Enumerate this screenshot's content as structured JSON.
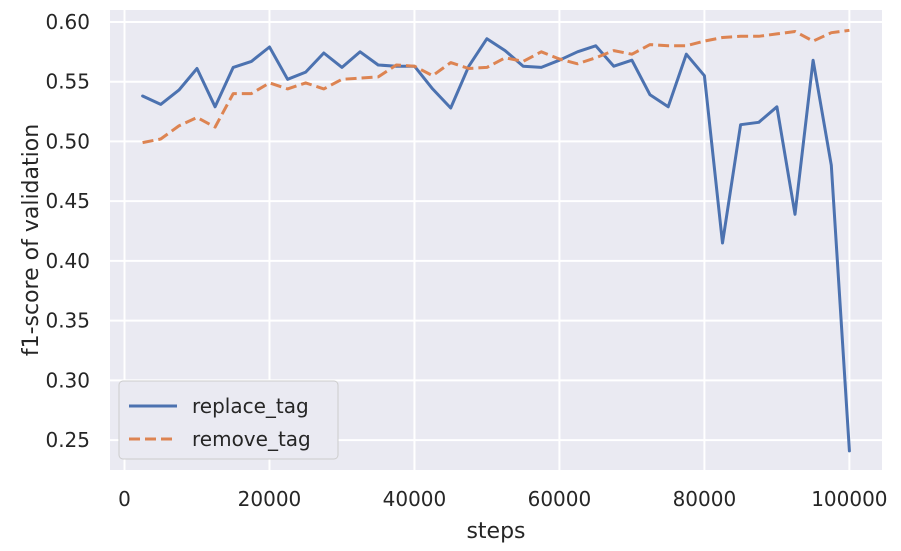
{
  "chart_data": {
    "type": "line",
    "title": "",
    "xlabel": "steps",
    "ylabel": "f1-score of validation",
    "xlim": [
      -2000,
      104500
    ],
    "ylim": [
      0.225,
      0.61
    ],
    "xticks": [
      0,
      20000,
      40000,
      60000,
      80000,
      100000
    ],
    "yticks": [
      0.25,
      0.3,
      0.35,
      0.4,
      0.45,
      0.5,
      0.55,
      0.6
    ],
    "grid": true,
    "legend": "lower-left",
    "series": [
      {
        "name": "replace_tag",
        "color": "#4c72b0",
        "dash": "solid",
        "x": [
          2500,
          5000,
          7500,
          10000,
          12500,
          15000,
          17500,
          20000,
          22500,
          25000,
          27500,
          30000,
          32500,
          35000,
          37500,
          40000,
          42500,
          45000,
          47500,
          50000,
          52500,
          55000,
          57500,
          60000,
          62500,
          65000,
          67500,
          70000,
          72500,
          75000,
          77500,
          80000,
          82500,
          85000,
          87500,
          90000,
          92500,
          95000,
          97500,
          100000
        ],
        "y": [
          0.538,
          0.531,
          0.543,
          0.561,
          0.529,
          0.562,
          0.567,
          0.579,
          0.552,
          0.558,
          0.574,
          0.562,
          0.575,
          0.564,
          0.563,
          0.563,
          0.544,
          0.528,
          0.563,
          0.586,
          0.576,
          0.563,
          0.562,
          0.568,
          0.575,
          0.58,
          0.563,
          0.568,
          0.539,
          0.529,
          0.573,
          0.555,
          0.415,
          0.514,
          0.516,
          0.529,
          0.439,
          0.568,
          0.48,
          0.241
        ]
      },
      {
        "name": "remove_tag",
        "color": "#dd8452",
        "dash": "dashed",
        "x": [
          2500,
          5000,
          7500,
          10000,
          12500,
          15000,
          17500,
          20000,
          22500,
          25000,
          27500,
          30000,
          32500,
          35000,
          37500,
          40000,
          42500,
          45000,
          47500,
          50000,
          52500,
          55000,
          57500,
          60000,
          62500,
          65000,
          67500,
          70000,
          72500,
          75000,
          77500,
          80000,
          82500,
          85000,
          87500,
          90000,
          92500,
          95000,
          97500,
          100000
        ],
        "y": [
          0.499,
          0.502,
          0.513,
          0.52,
          0.512,
          0.54,
          0.54,
          0.549,
          0.544,
          0.549,
          0.544,
          0.552,
          0.553,
          0.554,
          0.564,
          0.563,
          0.555,
          0.566,
          0.561,
          0.562,
          0.57,
          0.567,
          0.575,
          0.569,
          0.565,
          0.57,
          0.576,
          0.573,
          0.581,
          0.58,
          0.58,
          0.584,
          0.587,
          0.588,
          0.588,
          0.59,
          0.592,
          0.584,
          0.591,
          0.593
        ]
      }
    ]
  },
  "colors": {
    "plot_background": "#eaeaf2",
    "grid": "#ffffff"
  }
}
